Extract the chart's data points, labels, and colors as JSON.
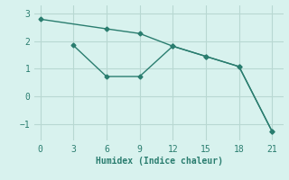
{
  "line1_x": [
    0,
    6,
    9,
    12,
    15,
    18,
    21
  ],
  "line1_y": [
    2.8,
    2.45,
    2.28,
    1.82,
    1.45,
    1.08,
    -1.28
  ],
  "line2_x": [
    3,
    6,
    9,
    12,
    15,
    18,
    21
  ],
  "line2_y": [
    1.85,
    0.72,
    0.72,
    1.82,
    1.45,
    1.08,
    -1.28
  ],
  "line_color": "#2a7d6f",
  "background_color": "#d8f2ee",
  "grid_color": "#b8d8d2",
  "xlabel": "Humidex (Indice chaleur)",
  "xlim": [
    -0.5,
    22
  ],
  "ylim": [
    -1.6,
    3.3
  ],
  "xticks": [
    0,
    3,
    6,
    9,
    12,
    15,
    18,
    21
  ],
  "yticks": [
    -1,
    0,
    1,
    2,
    3
  ],
  "marker": "D",
  "marker_size": 2.5,
  "line_width": 1.0
}
